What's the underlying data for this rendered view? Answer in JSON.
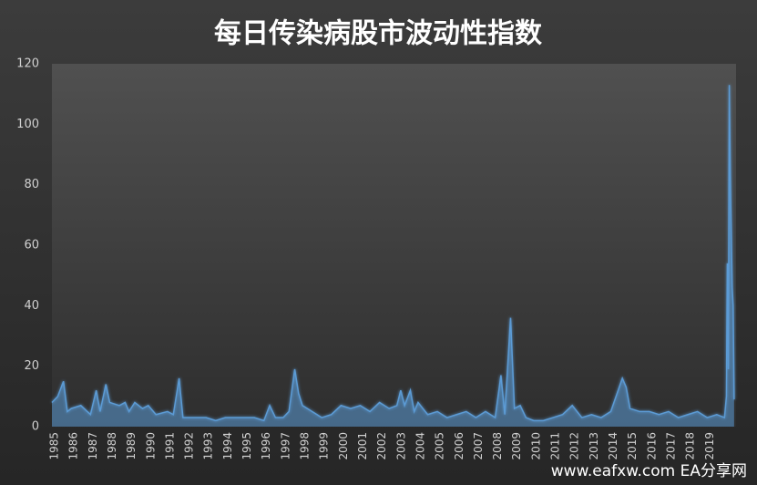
{
  "chart_data": {
    "type": "line",
    "title": "每日传染病股市波动性指数",
    "x": [
      1985,
      1985.3,
      1985.6,
      1985.8,
      1986,
      1986.5,
      1987,
      1987.3,
      1987.5,
      1987.8,
      1988,
      1988.5,
      1988.8,
      1989,
      1989.3,
      1989.7,
      1990,
      1990.4,
      1991,
      1991.3,
      1991.6,
      1991.8,
      1992,
      1992.5,
      1993,
      1993.5,
      1994,
      1994.5,
      1995,
      1995.5,
      1996,
      1996.3,
      1996.6,
      1997,
      1997.3,
      1997.6,
      1997.8,
      1998,
      1998.5,
      1999,
      1999.5,
      2000,
      2000.5,
      2001,
      2001.5,
      2002,
      2002.5,
      2002.9,
      2003.1,
      2003.3,
      2003.6,
      2003.8,
      2004,
      2004.5,
      2005,
      2005.5,
      2006,
      2006.5,
      2007,
      2007.5,
      2008,
      2008.3,
      2008.5,
      2008.8,
      2009,
      2009.3,
      2009.6,
      2010,
      2010.5,
      2011,
      2011.5,
      2012,
      2012.5,
      2013,
      2013.5,
      2014,
      2014.6,
      2014.8,
      2015,
      2015.5,
      2016,
      2016.5,
      2017,
      2017.5,
      2018,
      2018.5,
      2019,
      2019.5,
      2019.9,
      2020,
      2020.05,
      2020.1,
      2020.15,
      2020.2,
      2020.25,
      2020.3,
      2020.35,
      2020.4
    ],
    "series": [
      {
        "name": "每日传染病股市波动性指数",
        "color": "#5b9bd5",
        "values": [
          8,
          10,
          15,
          5,
          6,
          7,
          4,
          12,
          5,
          14,
          8,
          7,
          8,
          5,
          8,
          6,
          7,
          4,
          5,
          4,
          16,
          3,
          3,
          3,
          3,
          2,
          3,
          3,
          3,
          3,
          2,
          7,
          3,
          3,
          5,
          19,
          11,
          7,
          5,
          3,
          4,
          7,
          6,
          7,
          5,
          8,
          6,
          7,
          12,
          7,
          12,
          5,
          8,
          4,
          5,
          3,
          4,
          5,
          3,
          5,
          3,
          17,
          4,
          36,
          6,
          7,
          3,
          2,
          2,
          3,
          4,
          7,
          3,
          4,
          3,
          5,
          16,
          13,
          6,
          5,
          5,
          4,
          5,
          3,
          4,
          5,
          3,
          4,
          3,
          10,
          54,
          19,
          113,
          83,
          65,
          46,
          40,
          9
        ]
      }
    ],
    "xlim": [
      1985,
      2020.5
    ],
    "xticks": [
      1985,
      1986,
      1987,
      1988,
      1989,
      1990,
      1991,
      1992,
      1993,
      1994,
      1995,
      1996,
      1997,
      1998,
      1999,
      2000,
      2001,
      2002,
      2003,
      2004,
      2005,
      2006,
      2007,
      2008,
      2009,
      2010,
      2011,
      2012,
      2013,
      2014,
      2015,
      2016,
      2017,
      2018,
      2019
    ],
    "ylim": [
      0,
      120
    ],
    "yticks": [
      0,
      20,
      40,
      60,
      80,
      100,
      120
    ],
    "watermark": "www.eafxw.com  EA分享网"
  }
}
